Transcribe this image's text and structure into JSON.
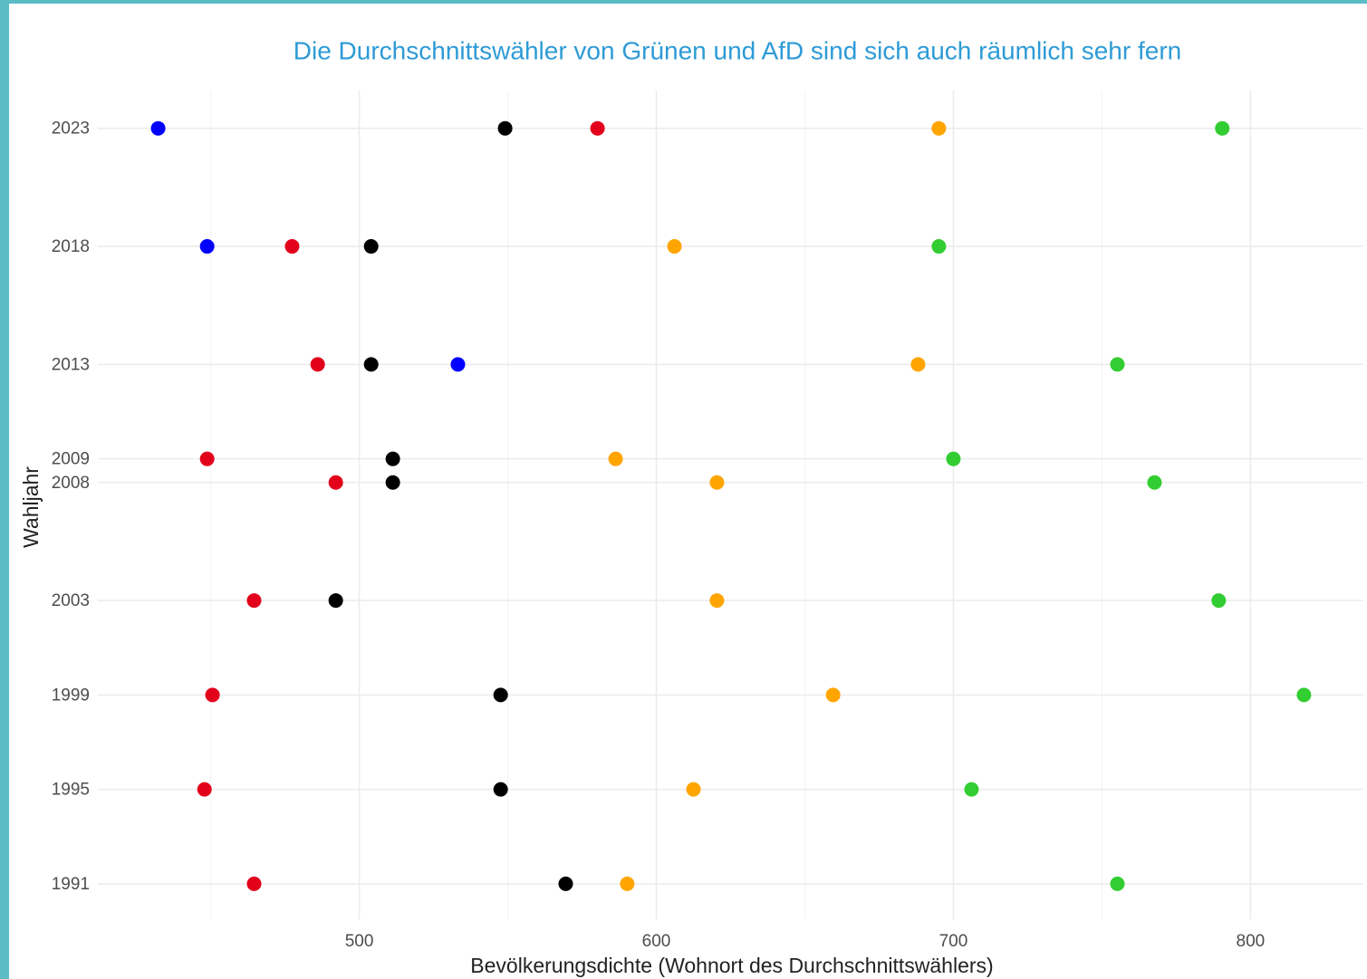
{
  "chart_data": {
    "type": "scatter",
    "title": "Die Durchschnittswähler von Grünen und AfD sind sich auch räumlich sehr fern",
    "x_label": "Bevölkerungsdichte (Wohnort des Durchschnittswählers)",
    "y_label": "Wahljahr",
    "y": [
      2023,
      2018,
      2013,
      2009,
      2008,
      2003,
      1999,
      1995,
      1991
    ],
    "series": [
      {
        "color": "#0000ff",
        "values": [
          432.3,
          448.8,
          533.2,
          null,
          null,
          null,
          null,
          null,
          null
        ]
      },
      {
        "color": "#000000",
        "values": [
          549.1,
          504.0,
          504.0,
          511.3,
          511.3,
          492.1,
          547.6,
          547.6,
          569.5
        ]
      },
      {
        "color": "#e3001b",
        "values": [
          580.2,
          477.4,
          486.0,
          448.8,
          492.1,
          464.6,
          450.6,
          447.9,
          464.6
        ]
      },
      {
        "color": "#ffa500",
        "values": [
          695.1,
          606.1,
          688.1,
          586.3,
          620.4,
          620.4,
          659.5,
          612.5,
          590.2
        ]
      },
      {
        "color": "#32cd32",
        "values": [
          790.5,
          695.1,
          755.2,
          700.0,
          767.7,
          789.3,
          818.0,
          706.1,
          755.2
        ]
      }
    ],
    "xlim": [
      412,
      838
    ],
    "ylim": [
      1989.5,
      2024.6
    ],
    "xticks": [
      500,
      600,
      700,
      800
    ],
    "xminorticks": [
      450,
      550,
      650,
      750
    ],
    "yticks": [
      1991,
      1995,
      1999,
      2003,
      2008,
      2009,
      2013,
      2018,
      2023
    ],
    "grid": true
  }
}
